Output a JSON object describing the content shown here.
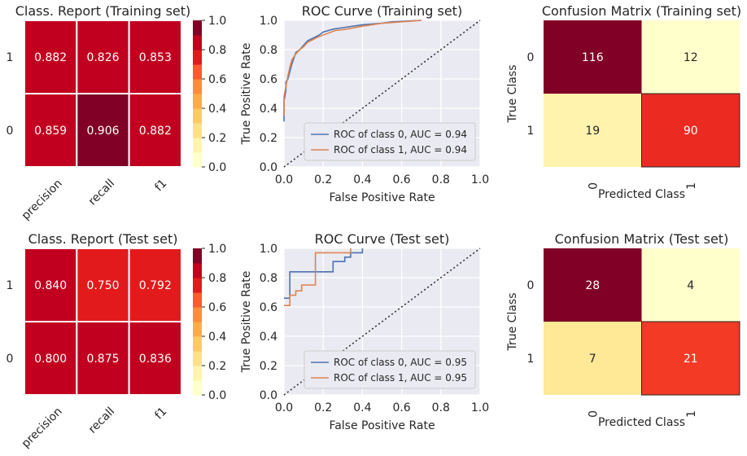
{
  "chart_data": [
    {
      "type": "heatmap",
      "id": "cr-train",
      "title": "Class. Report (Training set)",
      "xticks": [
        "precision",
        "recall",
        "f1"
      ],
      "yticks": [
        "1",
        "0"
      ],
      "values": [
        [
          0.882,
          0.826,
          0.853
        ],
        [
          0.859,
          0.906,
          0.882
        ]
      ],
      "labels": [
        [
          "0.882",
          "0.826",
          "0.853"
        ],
        [
          "0.859",
          "0.906",
          "0.882"
        ]
      ],
      "vmin": 0,
      "vmax": 1,
      "colorbar_ticks": [
        "0.0",
        "0.2",
        "0.4",
        "0.6",
        "0.8",
        "1.0"
      ]
    },
    {
      "type": "line",
      "id": "roc-train",
      "title": "ROC Curve (Training set)",
      "xlabel": "False Positive Rate",
      "ylabel": "True Positive Rate",
      "xlim": [
        0,
        1
      ],
      "ylim": [
        0,
        1
      ],
      "xticks": [
        "0.0",
        "0.2",
        "0.4",
        "0.6",
        "0.8",
        "1.0"
      ],
      "yticks": [
        "0.0",
        "0.2",
        "0.4",
        "0.6",
        "0.8",
        "1.0"
      ],
      "legend_position": "lower-right",
      "series": [
        {
          "name": "ROC of class 0, AUC = 0.94",
          "color": "#4c72b0",
          "points": [
            [
              0,
              0.31
            ],
            [
              0,
              0.45
            ],
            [
              0.01,
              0.52
            ],
            [
              0.01,
              0.58
            ],
            [
              0.02,
              0.6
            ],
            [
              0.03,
              0.65
            ],
            [
              0.04,
              0.7
            ],
            [
              0.05,
              0.74
            ],
            [
              0.06,
              0.78
            ],
            [
              0.08,
              0.8
            ],
            [
              0.1,
              0.83
            ],
            [
              0.12,
              0.86
            ],
            [
              0.15,
              0.88
            ],
            [
              0.18,
              0.9
            ],
            [
              0.2,
              0.92
            ],
            [
              0.25,
              0.94
            ],
            [
              0.3,
              0.95
            ],
            [
              0.4,
              0.97
            ],
            [
              0.5,
              0.98
            ],
            [
              0.55,
              0.99
            ],
            [
              0.7,
              1.0
            ]
          ]
        },
        {
          "name": "ROC of class 1, AUC = 0.94",
          "color": "#dd8452",
          "points": [
            [
              0,
              0.35
            ],
            [
              0,
              0.48
            ],
            [
              0.01,
              0.55
            ],
            [
              0.02,
              0.62
            ],
            [
              0.03,
              0.68
            ],
            [
              0.04,
              0.73
            ],
            [
              0.06,
              0.77
            ],
            [
              0.08,
              0.8
            ],
            [
              0.1,
              0.82
            ],
            [
              0.12,
              0.85
            ],
            [
              0.15,
              0.87
            ],
            [
              0.18,
              0.89
            ],
            [
              0.22,
              0.91
            ],
            [
              0.26,
              0.93
            ],
            [
              0.32,
              0.94
            ],
            [
              0.4,
              0.96
            ],
            [
              0.5,
              0.98
            ],
            [
              0.6,
              0.99
            ],
            [
              0.7,
              1.0
            ]
          ]
        }
      ]
    },
    {
      "type": "heatmap",
      "id": "cm-train",
      "title": "Confusion Matrix (Training set)",
      "xlabel": "Predicted Class",
      "ylabel": "True Class",
      "xticks": [
        "0",
        "1"
      ],
      "yticks": [
        "0",
        "1"
      ],
      "values": [
        [
          116,
          12
        ],
        [
          19,
          90
        ]
      ],
      "labels": [
        [
          "116",
          "12"
        ],
        [
          "19",
          "90"
        ]
      ]
    },
    {
      "type": "heatmap",
      "id": "cr-test",
      "title": "Class. Report (Test set)",
      "xticks": [
        "precision",
        "recall",
        "f1"
      ],
      "yticks": [
        "1",
        "0"
      ],
      "values": [
        [
          0.84,
          0.75,
          0.792
        ],
        [
          0.8,
          0.875,
          0.836
        ]
      ],
      "labels": [
        [
          "0.840",
          "0.750",
          "0.792"
        ],
        [
          "0.800",
          "0.875",
          "0.836"
        ]
      ],
      "vmin": 0,
      "vmax": 1,
      "colorbar_ticks": [
        "0.0",
        "0.2",
        "0.4",
        "0.6",
        "0.8",
        "1.0"
      ]
    },
    {
      "type": "line",
      "id": "roc-test",
      "title": "ROC Curve (Test set)",
      "xlabel": "False Positive Rate",
      "ylabel": "True Positive Rate",
      "xlim": [
        0,
        1
      ],
      "ylim": [
        0.0,
        1.0
      ],
      "ylim_view": [
        0,
        1
      ],
      "xticks": [
        "0.0",
        "0.2",
        "0.4",
        "0.6",
        "0.8",
        "1.0"
      ],
      "yticks": [
        "0.0",
        "0.2",
        "0.4",
        "0.6",
        "0.8",
        "1.0"
      ],
      "legend_position": "lower-right",
      "series": [
        {
          "name": "ROC of class 0, AUC = 0.95",
          "color": "#4c72b0",
          "points": [
            [
              0,
              0.66
            ],
            [
              0.03,
              0.66
            ],
            [
              0.03,
              0.84
            ],
            [
              0.25,
              0.84
            ],
            [
              0.25,
              0.91
            ],
            [
              0.31,
              0.91
            ],
            [
              0.31,
              0.94
            ],
            [
              0.34,
              0.94
            ],
            [
              0.34,
              0.97
            ],
            [
              0.4,
              0.97
            ],
            [
              0.4,
              1.0
            ]
          ]
        },
        {
          "name": "ROC of class 1, AUC = 0.95",
          "color": "#dd8452",
          "points": [
            [
              0,
              0.61
            ],
            [
              0.03,
              0.61
            ],
            [
              0.03,
              0.68
            ],
            [
              0.06,
              0.68
            ],
            [
              0.06,
              0.71
            ],
            [
              0.09,
              0.71
            ],
            [
              0.09,
              0.75
            ],
            [
              0.16,
              0.75
            ],
            [
              0.16,
              0.97
            ],
            [
              0.34,
              0.97
            ],
            [
              0.34,
              1.0
            ]
          ]
        }
      ]
    },
    {
      "type": "heatmap",
      "id": "cm-test",
      "title": "Confusion Matrix (Test set)",
      "xlabel": "Predicted Class",
      "ylabel": "True Class",
      "xticks": [
        "0",
        "1"
      ],
      "yticks": [
        "0",
        "1"
      ],
      "values": [
        [
          28,
          4
        ],
        [
          7,
          21
        ]
      ],
      "labels": [
        [
          "28",
          "4"
        ],
        [
          "7",
          "21"
        ]
      ]
    }
  ]
}
